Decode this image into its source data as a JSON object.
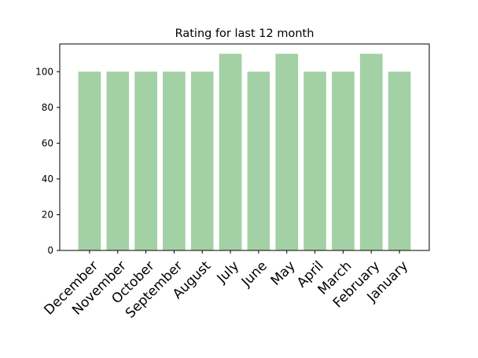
{
  "chart_data": {
    "type": "bar",
    "title": "Rating for last 12 month",
    "xlabel": "",
    "ylabel": "",
    "categories": [
      "December",
      "November",
      "October",
      "September",
      "August",
      "July",
      "June",
      "May",
      "April",
      "March",
      "February",
      "January"
    ],
    "values": [
      100,
      100,
      100,
      100,
      100,
      110,
      100,
      110,
      100,
      100,
      110,
      100
    ],
    "ylim": [
      0,
      115.5
    ],
    "yticks": [
      0,
      20,
      40,
      60,
      80,
      100
    ],
    "grid": false,
    "legend": "none",
    "bar_color": "#a3d0a4"
  }
}
